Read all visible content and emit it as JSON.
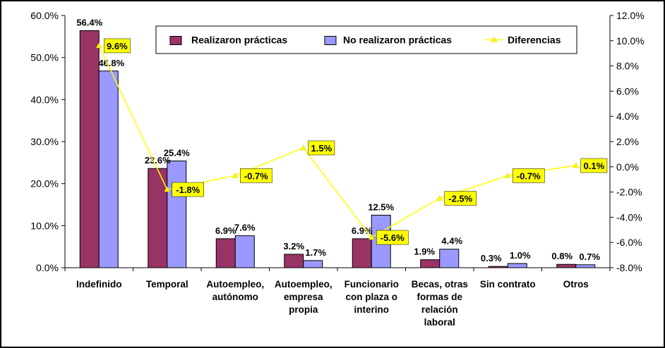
{
  "chart_data": {
    "type": "bar",
    "categories": [
      [
        "Indefinido"
      ],
      [
        "Temporal"
      ],
      [
        "Autoempleo,",
        "autónomo"
      ],
      [
        "Autoempleo,",
        "empresa",
        "propia"
      ],
      [
        "Funcionario",
        "con plaza o",
        "interino"
      ],
      [
        "Becas, otras",
        "formas de",
        "relación",
        "laboral"
      ],
      [
        "Sin contrato"
      ],
      [
        "Otros"
      ]
    ],
    "series": [
      {
        "name": "Realizaron prácticas",
        "values": [
          56.4,
          23.6,
          6.9,
          3.2,
          6.9,
          1.9,
          0.3,
          0.8
        ],
        "labels": [
          "56.4%",
          "23.6%",
          "6.9%",
          "3.2%",
          "6.9%",
          "1.9%",
          "0.3%",
          "0.8%"
        ],
        "color": "#993366",
        "axis": "left"
      },
      {
        "name": "No realizaron prácticas",
        "values": [
          46.8,
          25.4,
          7.6,
          1.7,
          12.5,
          4.4,
          1.0,
          0.7
        ],
        "labels": [
          "46.8%",
          "25.4%",
          "7.6%",
          "1.7%",
          "12.5%",
          "4.4%",
          "1.0%",
          "0.7%"
        ],
        "color": "#9999FF",
        "axis": "left"
      },
      {
        "name": "Diferencias",
        "values": [
          9.6,
          -1.8,
          -0.7,
          1.5,
          -5.6,
          -2.5,
          -0.7,
          0.1
        ],
        "labels": [
          "9.6%",
          "-1.8%",
          "-0.7%",
          "1.5%",
          "-5.6%",
          "-2.5%",
          "-0.7%",
          "0.1%"
        ],
        "color": "#FFFF00",
        "type": "line",
        "axis": "right"
      }
    ],
    "ylim_left": [
      0,
      60
    ],
    "yticks_left": [
      "0.0%",
      "10.0%",
      "20.0%",
      "30.0%",
      "40.0%",
      "50.0%",
      "60.0%"
    ],
    "ylim_right": [
      -8,
      12
    ],
    "yticks_right": [
      "-8.0%",
      "-6.0%",
      "-4.0%",
      "-2.0%",
      "0.0%",
      "2.0%",
      "4.0%",
      "6.0%",
      "8.0%",
      "10.0%",
      "12.0%"
    ],
    "legend_position": "top",
    "grid": false,
    "background": "#FFFFFF",
    "frame": "#000000"
  }
}
